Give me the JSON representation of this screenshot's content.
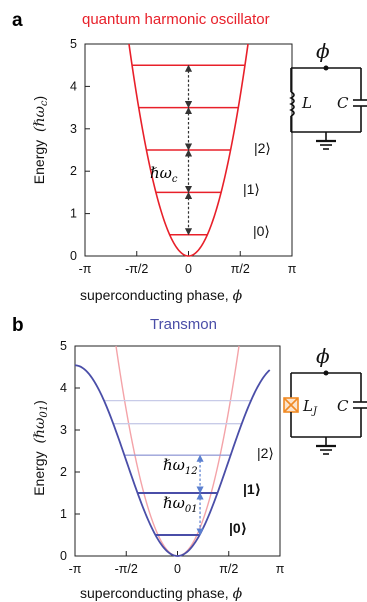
{
  "panel_a": {
    "letter": "a",
    "title": "quantum harmonic oscillator",
    "ylabel": "Energy",
    "yunit": "(ℏω",
    "yunit_sub": "c",
    "xlabel": "superconducting phase, ",
    "phi": "ϕ",
    "x_ticks": [
      "-π",
      "-π/2",
      "0",
      "π/2",
      "π"
    ],
    "y_ticks": [
      "0",
      "1",
      "2",
      "3",
      "4",
      "5"
    ],
    "kets": [
      "|0⟩",
      "|1⟩",
      "|2⟩"
    ],
    "spacing_label": "ℏω",
    "spacing_sub": "c",
    "circuit": {
      "node_label": "ϕ",
      "inductor_label": "L",
      "capacitor_label": "C"
    },
    "levels": [
      0.5,
      1.5,
      2.5,
      3.5,
      4.5
    ],
    "colors": {
      "curve": "#e8202a",
      "arrow": "#333333"
    }
  },
  "panel_b": {
    "letter": "b",
    "title": "Transmon",
    "ylabel": "Energy",
    "yunit": "(ℏω",
    "yunit_sub": "01",
    "xlabel": "superconducting phase, ",
    "phi": "ϕ",
    "x_ticks": [
      "-π",
      "-π/2",
      "0",
      "π/2",
      "π"
    ],
    "y_ticks": [
      "0",
      "1",
      "2",
      "3",
      "4",
      "5"
    ],
    "kets": [
      "|0⟩",
      "|1⟩",
      "|2⟩"
    ],
    "spacing_labels": [
      {
        "main": "ℏω",
        "sub": "12"
      },
      {
        "main": "ℏω",
        "sub": "01"
      }
    ],
    "circuit": {
      "node_label": "ϕ",
      "junction_label": "L",
      "junction_sub": "J",
      "capacitor_label": "C"
    },
    "levels": [
      0.5,
      1.5,
      2.4,
      3.15,
      3.7
    ],
    "colors": {
      "curve": "#4a4ea8",
      "harmonic": "#f4a3a8",
      "arrow": "#5a7fd0",
      "junction": "#f08a24"
    }
  }
}
